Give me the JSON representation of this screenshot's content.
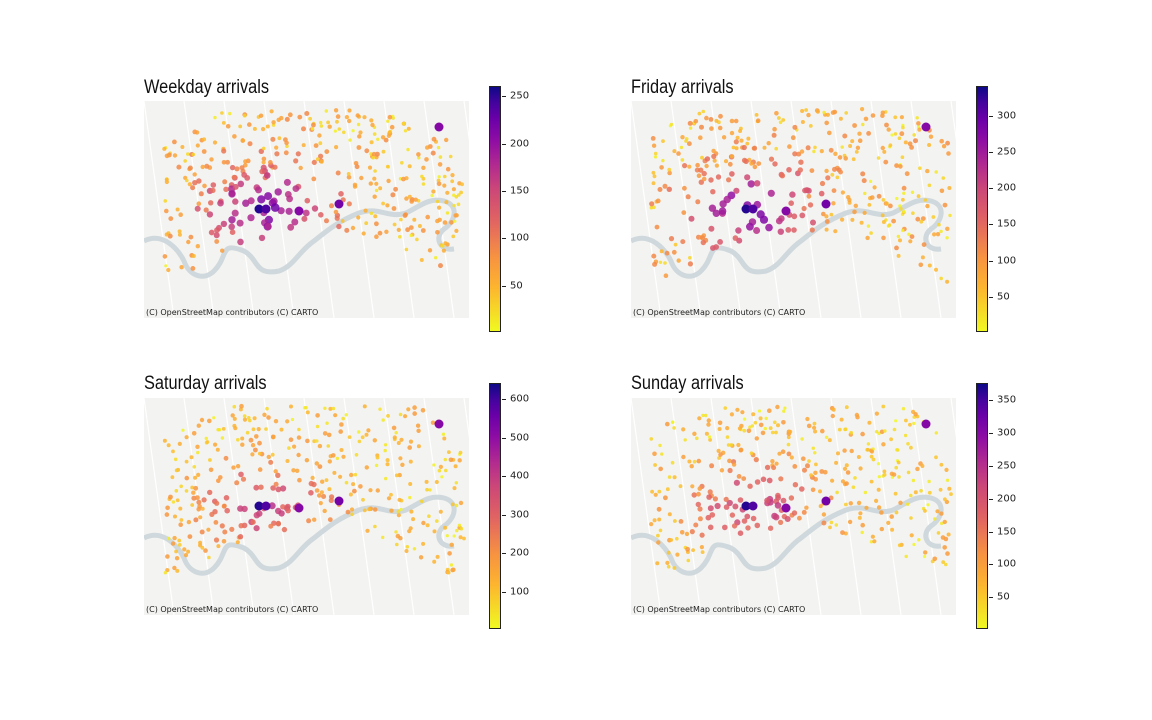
{
  "panels": [
    {
      "title": "Weekday arrivals",
      "attribution": "(C) OpenStreetMap contributors (C) CARTO",
      "colorbar": {
        "min": 0,
        "max": 260,
        "ticks": [
          "50",
          "100",
          "150",
          "200",
          "250"
        ]
      }
    },
    {
      "title": "Friday arrivals",
      "attribution": "(C) OpenStreetMap contributors (C) CARTO",
      "colorbar": {
        "min": 0,
        "max": 340,
        "ticks": [
          "50",
          "100",
          "150",
          "200",
          "250",
          "300"
        ]
      }
    },
    {
      "title": "Saturday arrivals",
      "attribution": "(C) OpenStreetMap contributors (C) CARTO",
      "colorbar": {
        "min": 0,
        "max": 640,
        "ticks": [
          "100",
          "200",
          "300",
          "400",
          "500",
          "600"
        ]
      }
    },
    {
      "title": "Sunday arrivals",
      "attribution": "(C) OpenStreetMap contributors (C) CARTO",
      "colorbar": {
        "min": 0,
        "max": 375,
        "ticks": [
          "50",
          "100",
          "150",
          "200",
          "250",
          "300",
          "350"
        ]
      }
    }
  ],
  "colormap": "plasma_r",
  "colors": {
    "low": "#f0f921",
    "mid": "#e16462",
    "high": "#0d0887",
    "river": "#cfd8dc",
    "basemap": "#f3f3f1"
  }
}
